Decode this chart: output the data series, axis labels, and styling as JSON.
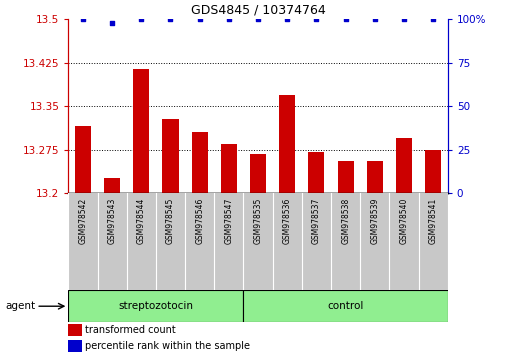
{
  "title": "GDS4845 / 10374764",
  "samples": [
    "GSM978542",
    "GSM978543",
    "GSM978544",
    "GSM978545",
    "GSM978546",
    "GSM978547",
    "GSM978535",
    "GSM978536",
    "GSM978537",
    "GSM978538",
    "GSM978539",
    "GSM978540",
    "GSM978541"
  ],
  "red_values": [
    13.315,
    13.225,
    13.415,
    13.327,
    13.305,
    13.285,
    13.268,
    13.37,
    13.27,
    13.256,
    13.256,
    13.295,
    13.275
  ],
  "blue_pct": [
    100,
    100,
    100,
    100,
    100,
    100,
    100,
    100,
    100,
    100,
    100,
    100,
    100
  ],
  "blue_pct_override_idx": 1,
  "blue_pct_override_val": 98,
  "ylim_left": [
    13.2,
    13.5
  ],
  "ylim_right": [
    0,
    100
  ],
  "yticks_left": [
    13.2,
    13.275,
    13.35,
    13.425,
    13.5
  ],
  "ytick_labels_left": [
    "13.2",
    "13.275",
    "13.35",
    "13.425",
    "13.5"
  ],
  "yticks_right": [
    0,
    25,
    50,
    75,
    100
  ],
  "ytick_labels_right": [
    "0",
    "25",
    "50",
    "75",
    "100%"
  ],
  "group_divider_idx": 6,
  "group1_label": "streptozotocin",
  "group2_label": "control",
  "bar_color": "#CC0000",
  "blue_color": "#0000CC",
  "green_color": "#90EE90",
  "gray_color": "#C8C8C8",
  "agent_label": "agent",
  "legend_red_label": "transformed count",
  "legend_blue_label": "percentile rank within the sample",
  "bg_color": "#FFFFFF"
}
